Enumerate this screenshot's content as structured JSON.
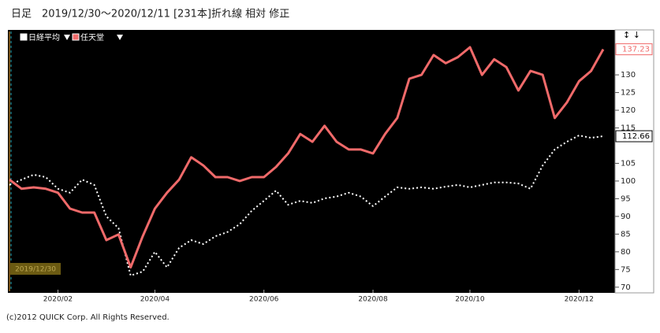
{
  "chart_data": {
    "type": "line",
    "title": "日足　2019/12/30～2020/12/11 [231本]折れ線 相対 修正",
    "annotation": "2019/12/30",
    "footer": "(c)2012 QUICK Corp. All Rights Reserved.",
    "categories": [
      null,
      null,
      null,
      null,
      "2020/02",
      null,
      null,
      null,
      null,
      null,
      null,
      null,
      "2020/04",
      null,
      null,
      null,
      null,
      null,
      null,
      null,
      null,
      "2020/06",
      null,
      null,
      null,
      null,
      null,
      null,
      null,
      null,
      "2020/08",
      null,
      null,
      null,
      null,
      null,
      null,
      null,
      "2020/10",
      null,
      null,
      null,
      null,
      null,
      null,
      null,
      null,
      "2020/12",
      null,
      null
    ],
    "series": [
      {
        "name": "日経平均",
        "color": "#ffffff",
        "dashed": true,
        "values": [
          98.9,
          100.4,
          101.8,
          101.1,
          97.8,
          96.7,
          100.4,
          98.9,
          90,
          86.7,
          73.3,
          74.4,
          80,
          75.6,
          81.1,
          83.3,
          82.2,
          84.4,
          85.6,
          87.8,
          91.6,
          94.4,
          97.3,
          93.3,
          94.4,
          93.8,
          95.1,
          95.6,
          96.7,
          95.6,
          92.9,
          95.6,
          98.2,
          97.8,
          98.2,
          97.8,
          98.4,
          98.9,
          98.2,
          98.9,
          99.6,
          99.6,
          99.3,
          97.8,
          104.4,
          108.9,
          111.1,
          112.9,
          112.2,
          112.66
        ]
      },
      {
        "name": "任天堂",
        "color": "#f06a6a",
        "dashed": false,
        "values": [
          100.4,
          97.8,
          98.2,
          97.8,
          96.7,
          92.2,
          91.1,
          91.1,
          83.3,
          84.9,
          75.6,
          84.4,
          92.2,
          96.7,
          100.4,
          106.7,
          104.4,
          101.1,
          101.1,
          100,
          101.1,
          101.1,
          104,
          107.8,
          113.3,
          111.1,
          115.6,
          111.1,
          108.9,
          108.9,
          107.8,
          113.3,
          117.8,
          128.9,
          130,
          135.6,
          133.3,
          135,
          137.8,
          130,
          134.4,
          132.2,
          125.6,
          131.1,
          130,
          117.8,
          122.2,
          128.2,
          131.1,
          137.23
        ]
      }
    ],
    "ylim": [
      68.4,
      142.7
    ],
    "yticks": [
      70,
      75,
      80,
      85,
      90,
      95,
      100,
      105,
      115,
      120,
      125,
      130
    ]
  }
}
